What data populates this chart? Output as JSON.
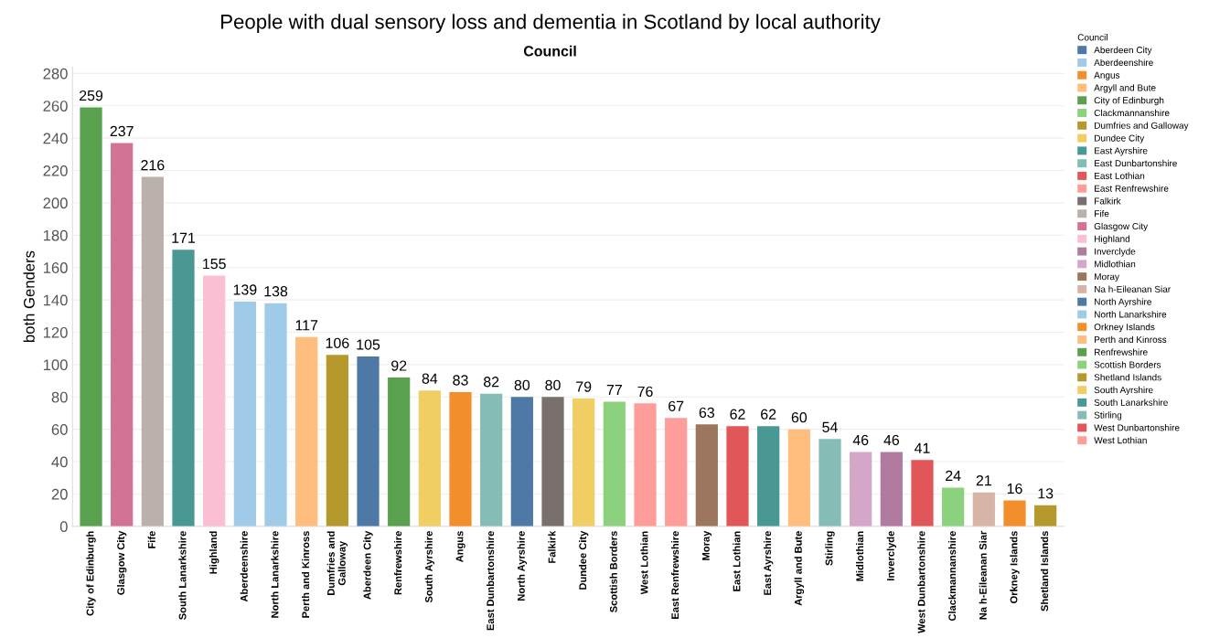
{
  "chart_data": {
    "type": "bar",
    "title": "People with dual sensory loss and dementia in Scotland by local authority",
    "subtitle": "Council",
    "ylabel": "both Genders",
    "legend_title": "Council",
    "legend": "right",
    "categories": [
      "City of Edinburgh",
      "Glasgow City",
      "Fife",
      "South Lanarkshire",
      "Highland",
      "Aberdeenshire",
      "North Lanarkshire",
      "Perth and Kinross",
      "Dumfries and\nGalloway",
      "Aberdeen City",
      "Renfrewshire",
      "South Ayrshire",
      "Angus",
      "East Dunbartonshire",
      "North Ayrshire",
      "Falkirk",
      "Dundee City",
      "Scottish Borders",
      "West Lothian",
      "East Renfrewshire",
      "Moray",
      "East Lothian",
      "East Ayrshire",
      "Argyll and Bute",
      "Stirling",
      "Midlothian",
      "Inverclyde",
      "West Dunbartonshire",
      "Clackmannanshire",
      "Na h-Eileanan Siar",
      "Orkney Islands",
      "Shetland Islands"
    ],
    "data_labels": true,
    "grid": "y",
    "ylim": [
      0,
      284
    ],
    "yticks": [
      0,
      20,
      40,
      60,
      80,
      100,
      120,
      140,
      160,
      180,
      200,
      220,
      240,
      260,
      280
    ],
    "series": [
      {
        "name": "Aberdeen City",
        "color": "#4e79a7",
        "values": [
          null,
          null,
          null,
          null,
          null,
          null,
          null,
          null,
          null,
          105,
          null,
          null,
          null,
          null,
          null,
          null,
          null,
          null,
          null,
          null,
          null,
          null,
          null,
          null,
          null,
          null,
          null,
          null,
          null,
          null,
          null,
          null
        ]
      },
      {
        "name": "Aberdeenshire",
        "color": "#a0cbe8",
        "values": [
          null,
          null,
          null,
          null,
          null,
          139,
          null,
          null,
          null,
          null,
          null,
          null,
          null,
          null,
          null,
          null,
          null,
          null,
          null,
          null,
          null,
          null,
          null,
          null,
          null,
          null,
          null,
          null,
          null,
          null,
          null,
          null
        ]
      },
      {
        "name": "Angus",
        "color": "#f28e2b",
        "values": [
          null,
          null,
          null,
          null,
          null,
          null,
          null,
          null,
          null,
          null,
          null,
          null,
          83,
          null,
          null,
          null,
          null,
          null,
          null,
          null,
          null,
          null,
          null,
          null,
          null,
          null,
          null,
          null,
          null,
          null,
          null,
          null
        ]
      },
      {
        "name": "Argyll and Bute",
        "color": "#ffbe7d",
        "values": [
          null,
          null,
          null,
          null,
          null,
          null,
          null,
          null,
          null,
          null,
          null,
          null,
          null,
          null,
          null,
          null,
          null,
          null,
          null,
          null,
          null,
          null,
          null,
          60,
          null,
          null,
          null,
          null,
          null,
          null,
          null,
          null
        ]
      },
      {
        "name": "City of Edinburgh",
        "color": "#59a14f",
        "values": [
          259,
          null,
          null,
          null,
          null,
          null,
          null,
          null,
          null,
          null,
          null,
          null,
          null,
          null,
          null,
          null,
          null,
          null,
          null,
          null,
          null,
          null,
          null,
          null,
          null,
          null,
          null,
          null,
          null,
          null,
          null,
          null
        ]
      },
      {
        "name": "Clackmannanshire",
        "color": "#8cd17d",
        "values": [
          null,
          null,
          null,
          null,
          null,
          null,
          null,
          null,
          null,
          null,
          null,
          null,
          null,
          null,
          null,
          null,
          null,
          null,
          null,
          null,
          null,
          null,
          null,
          null,
          null,
          null,
          null,
          null,
          24,
          null,
          null,
          null
        ]
      },
      {
        "name": "Dumfries and Galloway",
        "color": "#b6992d",
        "values": [
          null,
          null,
          null,
          null,
          null,
          null,
          null,
          null,
          106,
          null,
          null,
          null,
          null,
          null,
          null,
          null,
          null,
          null,
          null,
          null,
          null,
          null,
          null,
          null,
          null,
          null,
          null,
          null,
          null,
          null,
          null,
          null
        ]
      },
      {
        "name": "Dundee City",
        "color": "#f1ce63",
        "values": [
          null,
          null,
          null,
          null,
          null,
          null,
          null,
          null,
          null,
          null,
          null,
          null,
          null,
          null,
          null,
          null,
          79,
          null,
          null,
          null,
          null,
          null,
          null,
          null,
          null,
          null,
          null,
          null,
          null,
          null,
          null,
          null
        ]
      },
      {
        "name": "East Ayrshire",
        "color": "#499894",
        "values": [
          null,
          null,
          null,
          null,
          null,
          null,
          null,
          null,
          null,
          null,
          null,
          null,
          null,
          null,
          null,
          null,
          null,
          null,
          null,
          null,
          null,
          null,
          62,
          null,
          null,
          null,
          null,
          null,
          null,
          null,
          null,
          null
        ]
      },
      {
        "name": "East Dunbartonshire",
        "color": "#86bcb6",
        "values": [
          null,
          null,
          null,
          null,
          null,
          null,
          null,
          null,
          null,
          null,
          null,
          null,
          null,
          82,
          null,
          null,
          null,
          null,
          null,
          null,
          null,
          null,
          null,
          null,
          null,
          null,
          null,
          null,
          null,
          null,
          null,
          null
        ]
      },
      {
        "name": "East Lothian",
        "color": "#e15759",
        "values": [
          null,
          null,
          null,
          null,
          null,
          null,
          null,
          null,
          null,
          null,
          null,
          null,
          null,
          null,
          null,
          null,
          null,
          null,
          null,
          null,
          null,
          62,
          null,
          null,
          null,
          null,
          null,
          null,
          null,
          null,
          null,
          null
        ]
      },
      {
        "name": "East Renfrewshire",
        "color": "#ff9d9a",
        "values": [
          null,
          null,
          null,
          null,
          null,
          null,
          null,
          null,
          null,
          null,
          null,
          null,
          null,
          null,
          null,
          null,
          null,
          null,
          null,
          67,
          null,
          null,
          null,
          null,
          null,
          null,
          null,
          null,
          null,
          null,
          null,
          null
        ]
      },
      {
        "name": "Falkirk",
        "color": "#79706e",
        "values": [
          null,
          null,
          null,
          null,
          null,
          null,
          null,
          null,
          null,
          null,
          null,
          null,
          null,
          null,
          null,
          80,
          null,
          null,
          null,
          null,
          null,
          null,
          null,
          null,
          null,
          null,
          null,
          null,
          null,
          null,
          null,
          null
        ]
      },
      {
        "name": "Fife",
        "color": "#bab0ac",
        "values": [
          null,
          null,
          216,
          null,
          null,
          null,
          null,
          null,
          null,
          null,
          null,
          null,
          null,
          null,
          null,
          null,
          null,
          null,
          null,
          null,
          null,
          null,
          null,
          null,
          null,
          null,
          null,
          null,
          null,
          null,
          null,
          null
        ]
      },
      {
        "name": "Glasgow City",
        "color": "#d37295",
        "values": [
          null,
          237,
          null,
          null,
          null,
          null,
          null,
          null,
          null,
          null,
          null,
          null,
          null,
          null,
          null,
          null,
          null,
          null,
          null,
          null,
          null,
          null,
          null,
          null,
          null,
          null,
          null,
          null,
          null,
          null,
          null,
          null
        ]
      },
      {
        "name": "Highland",
        "color": "#fabfd2",
        "values": [
          null,
          null,
          null,
          null,
          155,
          null,
          null,
          null,
          null,
          null,
          null,
          null,
          null,
          null,
          null,
          null,
          null,
          null,
          null,
          null,
          null,
          null,
          null,
          null,
          null,
          null,
          null,
          null,
          null,
          null,
          null,
          null
        ]
      },
      {
        "name": "Inverclyde",
        "color": "#b07aa1",
        "values": [
          null,
          null,
          null,
          null,
          null,
          null,
          null,
          null,
          null,
          null,
          null,
          null,
          null,
          null,
          null,
          null,
          null,
          null,
          null,
          null,
          null,
          null,
          null,
          null,
          null,
          null,
          46,
          null,
          null,
          null,
          null,
          null
        ]
      },
      {
        "name": "Midlothian",
        "color": "#d4a6c8",
        "values": [
          null,
          null,
          null,
          null,
          null,
          null,
          null,
          null,
          null,
          null,
          null,
          null,
          null,
          null,
          null,
          null,
          null,
          null,
          null,
          null,
          null,
          null,
          null,
          null,
          null,
          46,
          null,
          null,
          null,
          null,
          null,
          null
        ]
      },
      {
        "name": "Moray",
        "color": "#9d7660",
        "values": [
          null,
          null,
          null,
          null,
          null,
          null,
          null,
          null,
          null,
          null,
          null,
          null,
          null,
          null,
          null,
          null,
          null,
          null,
          null,
          null,
          63,
          null,
          null,
          null,
          null,
          null,
          null,
          null,
          null,
          null,
          null,
          null
        ]
      },
      {
        "name": "Na h-Eileanan Siar",
        "color": "#d7b5a6",
        "values": [
          null,
          null,
          null,
          null,
          null,
          null,
          null,
          null,
          null,
          null,
          null,
          null,
          null,
          null,
          null,
          null,
          null,
          null,
          null,
          null,
          null,
          null,
          null,
          null,
          null,
          null,
          null,
          null,
          null,
          21,
          null,
          null
        ]
      },
      {
        "name": "North Ayrshire",
        "color": "#4e79a7",
        "values": [
          null,
          null,
          null,
          null,
          null,
          null,
          null,
          null,
          null,
          null,
          null,
          null,
          null,
          null,
          80,
          null,
          null,
          null,
          null,
          null,
          null,
          null,
          null,
          null,
          null,
          null,
          null,
          null,
          null,
          null,
          null,
          null
        ]
      },
      {
        "name": "North Lanarkshire",
        "color": "#a0cbe8",
        "values": [
          null,
          null,
          null,
          null,
          null,
          null,
          138,
          null,
          null,
          null,
          null,
          null,
          null,
          null,
          null,
          null,
          null,
          null,
          null,
          null,
          null,
          null,
          null,
          null,
          null,
          null,
          null,
          null,
          null,
          null,
          null,
          null
        ]
      },
      {
        "name": "Orkney Islands",
        "color": "#f28e2b",
        "values": [
          null,
          null,
          null,
          null,
          null,
          null,
          null,
          null,
          null,
          null,
          null,
          null,
          null,
          null,
          null,
          null,
          null,
          null,
          null,
          null,
          null,
          null,
          null,
          null,
          null,
          null,
          null,
          null,
          null,
          null,
          16,
          null
        ]
      },
      {
        "name": "Perth and Kinross",
        "color": "#ffbe7d",
        "values": [
          null,
          null,
          null,
          null,
          null,
          null,
          null,
          117,
          null,
          null,
          null,
          null,
          null,
          null,
          null,
          null,
          null,
          null,
          null,
          null,
          null,
          null,
          null,
          null,
          null,
          null,
          null,
          null,
          null,
          null,
          null,
          null
        ]
      },
      {
        "name": "Renfrewshire",
        "color": "#59a14f",
        "values": [
          null,
          null,
          null,
          null,
          null,
          null,
          null,
          null,
          null,
          null,
          92,
          null,
          null,
          null,
          null,
          null,
          null,
          null,
          null,
          null,
          null,
          null,
          null,
          null,
          null,
          null,
          null,
          null,
          null,
          null,
          null,
          null
        ]
      },
      {
        "name": "Scottish Borders",
        "color": "#8cd17d",
        "values": [
          null,
          null,
          null,
          null,
          null,
          null,
          null,
          null,
          null,
          null,
          null,
          null,
          null,
          null,
          null,
          null,
          null,
          77,
          null,
          null,
          null,
          null,
          null,
          null,
          null,
          null,
          null,
          null,
          null,
          null,
          null,
          null
        ]
      },
      {
        "name": "Shetland Islands",
        "color": "#b6992d",
        "values": [
          null,
          null,
          null,
          null,
          null,
          null,
          null,
          null,
          null,
          null,
          null,
          null,
          null,
          null,
          null,
          null,
          null,
          null,
          null,
          null,
          null,
          null,
          null,
          null,
          null,
          null,
          null,
          null,
          null,
          null,
          null,
          13
        ]
      },
      {
        "name": "South Ayrshire",
        "color": "#f1ce63",
        "values": [
          null,
          null,
          null,
          null,
          null,
          null,
          null,
          null,
          null,
          null,
          null,
          84,
          null,
          null,
          null,
          null,
          null,
          null,
          null,
          null,
          null,
          null,
          null,
          null,
          null,
          null,
          null,
          null,
          null,
          null,
          null,
          null
        ]
      },
      {
        "name": "South Lanarkshire",
        "color": "#499894",
        "values": [
          null,
          null,
          null,
          171,
          null,
          null,
          null,
          null,
          null,
          null,
          null,
          null,
          null,
          null,
          null,
          null,
          null,
          null,
          null,
          null,
          null,
          null,
          null,
          null,
          null,
          null,
          null,
          null,
          null,
          null,
          null,
          null
        ]
      },
      {
        "name": "Stirling",
        "color": "#86bcb6",
        "values": [
          null,
          null,
          null,
          null,
          null,
          null,
          null,
          null,
          null,
          null,
          null,
          null,
          null,
          null,
          null,
          null,
          null,
          null,
          null,
          null,
          null,
          null,
          null,
          null,
          54,
          null,
          null,
          null,
          null,
          null,
          null,
          null
        ]
      },
      {
        "name": "West Dunbartonshire",
        "color": "#e15759",
        "values": [
          null,
          null,
          null,
          null,
          null,
          null,
          null,
          null,
          null,
          null,
          null,
          null,
          null,
          null,
          null,
          null,
          null,
          null,
          null,
          null,
          null,
          null,
          null,
          null,
          null,
          null,
          null,
          41,
          null,
          null,
          null,
          null
        ]
      },
      {
        "name": "West Lothian",
        "color": "#ff9d9a",
        "values": [
          null,
          null,
          null,
          null,
          null,
          null,
          null,
          null,
          null,
          null,
          null,
          null,
          null,
          null,
          null,
          null,
          null,
          null,
          76,
          null,
          null,
          null,
          null,
          null,
          null,
          null,
          null,
          null,
          null,
          null,
          null,
          null
        ]
      }
    ]
  }
}
